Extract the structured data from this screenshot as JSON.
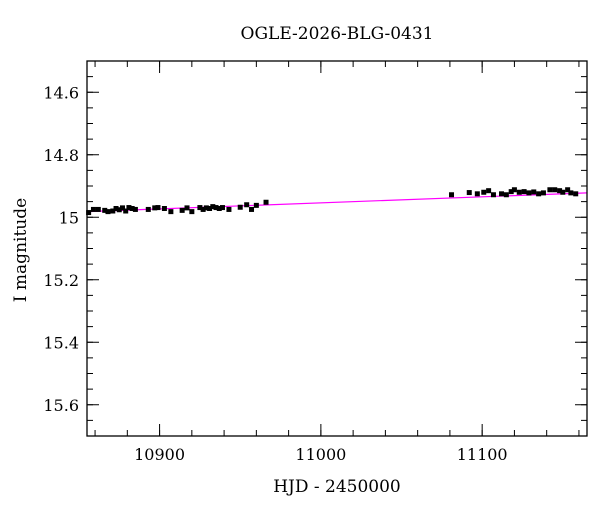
{
  "chart_data": {
    "type": "scatter",
    "title": "OGLE-2026-BLG-0431",
    "xlabel": "HJD - 2450000",
    "ylabel": "I magnitude",
    "xlim": [
      10855,
      11165
    ],
    "ylim": [
      15.7,
      14.5
    ],
    "y_inverted": true,
    "x_major_ticks": [
      10900,
      11000,
      11100
    ],
    "x_tick_labels": [
      "10900",
      "11000",
      "11100"
    ],
    "x_minor_step": 20,
    "y_major_ticks": [
      14.6,
      14.8,
      15.0,
      15.2,
      15.4,
      15.6
    ],
    "y_tick_labels": [
      "14.6",
      "14.8",
      "15",
      "15.2",
      "15.4",
      "15.6"
    ],
    "y_minor_step": 0.05,
    "grid": false,
    "colors": {
      "points": "#000000",
      "model": "#ff00ff",
      "axes": "#000000"
    },
    "series": [
      {
        "kind": "points",
        "x": [
          10856,
          10859,
          10862,
          10866,
          10868,
          10871,
          10873,
          10875,
          10877,
          10879,
          10881,
          10883,
          10885,
          10893,
          10897,
          10899,
          10903,
          10907,
          10914,
          10917,
          10920,
          10925,
          10927,
          10929,
          10931,
          10933,
          10935,
          10937,
          10939,
          10943,
          10950,
          10954,
          10957,
          10960,
          10966,
          11081,
          11092,
          11097,
          11101,
          11104,
          11107,
          11112,
          11115,
          11118,
          11120,
          11123,
          11126,
          11129,
          11132,
          11135,
          11138,
          11142,
          11145,
          11148,
          11150,
          11153,
          11155,
          11158
        ],
        "y": [
          14.985,
          14.975,
          14.975,
          14.978,
          14.982,
          14.98,
          14.972,
          14.976,
          14.97,
          14.98,
          14.969,
          14.972,
          14.975,
          14.975,
          14.97,
          14.969,
          14.972,
          14.982,
          14.978,
          14.97,
          14.982,
          14.969,
          14.975,
          14.97,
          14.972,
          14.966,
          14.969,
          14.972,
          14.969,
          14.975,
          14.968,
          14.96,
          14.975,
          14.962,
          14.952,
          14.928,
          14.921,
          14.925,
          14.92,
          14.915,
          14.928,
          14.925,
          14.928,
          14.918,
          14.912,
          14.92,
          14.918,
          14.922,
          14.919,
          14.925,
          14.922,
          14.912,
          14.912,
          14.915,
          14.92,
          14.912,
          14.922,
          14.925
        ]
      },
      {
        "kind": "model",
        "x": [
          10855,
          11165
        ],
        "y": [
          14.982,
          14.922
        ]
      }
    ]
  }
}
